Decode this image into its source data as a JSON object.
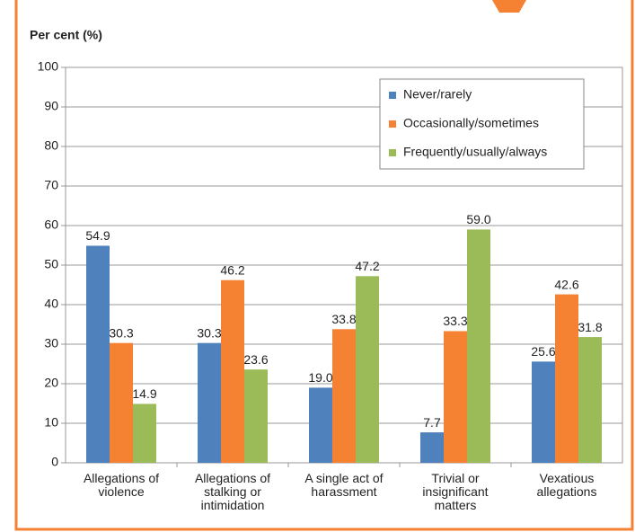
{
  "chart_data": {
    "type": "bar",
    "ylabel": "Per cent (%)",
    "categories": [
      "Allegations of\nviolence",
      "Allegations of\nstalking or\nintimidation",
      "A single act of\nharassment",
      "Trivial or\ninsignificant\nmatters",
      "Vexatious\nallegations"
    ],
    "series": [
      {
        "name": "Never/rarely",
        "color": "#4f81bd",
        "values": [
          54.9,
          30.3,
          19.0,
          7.7,
          25.6
        ],
        "value_labels": [
          "54.9",
          "30.3",
          "19.0",
          "7.7",
          "25.6"
        ]
      },
      {
        "name": "Occasionally/sometimes",
        "color": "#f58233",
        "values": [
          30.3,
          46.2,
          33.8,
          33.3,
          42.6
        ],
        "value_labels": [
          "30.3",
          "46.2",
          "33.8",
          "33.3",
          "42.6"
        ]
      },
      {
        "name": "Frequently/usually/always",
        "color": "#9bbb59",
        "values": [
          14.9,
          23.6,
          47.2,
          59.0,
          31.8
        ],
        "value_labels": [
          "14.9",
          "23.6",
          "47.2",
          "59.0",
          "31.8"
        ]
      }
    ],
    "ylim": [
      0,
      100
    ],
    "yticks": [
      0,
      10,
      20,
      30,
      40,
      50,
      60,
      70,
      80,
      90,
      100
    ],
    "grid": true,
    "legend": "top-right"
  }
}
